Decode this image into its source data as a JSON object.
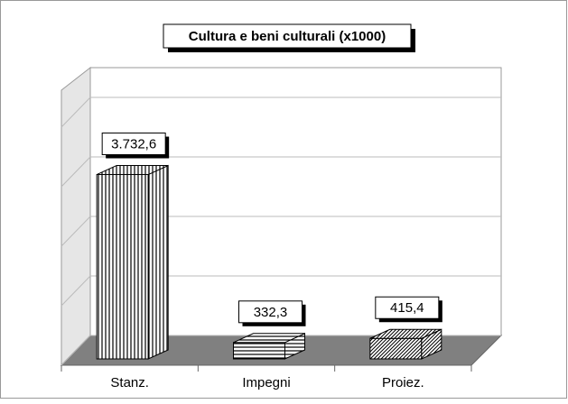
{
  "chart_data": {
    "type": "bar3d",
    "title": "Cultura e beni culturali (x1000)",
    "categories": [
      "Stanz.",
      "Impegni",
      "Proiez."
    ],
    "values": [
      3732.6,
      332.3,
      415.4
    ],
    "value_labels": [
      "3.732,6",
      "332,3",
      "415,4"
    ],
    "patterns": [
      "vertical",
      "horizontal",
      "diagonal"
    ],
    "ylim": [
      0,
      4500
    ],
    "yticks": [
      0,
      1000,
      2000,
      3000,
      4000
    ],
    "grid": true
  }
}
